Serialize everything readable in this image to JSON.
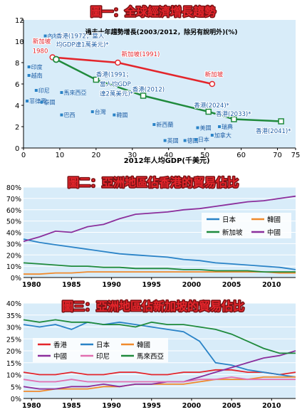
{
  "colors": {
    "panel_bg": "#d8ecf9",
    "title_red": "#e3252b",
    "title_outline": "#7a1214",
    "red": "#e3252b",
    "green": "#1f8a3c",
    "blue": "#2a83c7",
    "text_blue": "#1f5fa6",
    "grid": "#ffffff"
  },
  "chart_data": [
    {
      "type": "line",
      "title": "圖一：全球經濟增長趨勢",
      "subtitle": "過去十年趨勢增長(2003/2012，除另有說明外)(%)",
      "xlabel": "2012年人均GDP(千美元)",
      "ylabel": "",
      "xlim": [
        0,
        75
      ],
      "ylim": [
        0,
        12
      ],
      "x_ticks": [
        0,
        10,
        20,
        30,
        40,
        50,
        60,
        70,
        75
      ],
      "y_ticks": [
        0,
        2,
        4,
        6,
        8,
        10,
        12
      ],
      "grid": false,
      "series": [
        {
          "name": "新加坡",
          "color": "#e3252b",
          "points": [
            {
              "x": 8,
              "y": 8.5
            },
            {
              "x": 26,
              "y": 8.0
            },
            {
              "x": 52,
              "y": 6.0
            }
          ]
        },
        {
          "name": "香港",
          "color": "#1f8a3c",
          "points": [
            {
              "x": 9,
              "y": 8.3
            },
            {
              "x": 20,
              "y": 6.4
            },
            {
              "x": 33,
              "y": 4.9
            },
            {
              "x": 51,
              "y": 3.4
            },
            {
              "x": 58,
              "y": 2.7
            },
            {
              "x": 71,
              "y": 2.5
            }
          ]
        }
      ],
      "point_labels": [
        {
          "text": "新加坡",
          "x": 2.5,
          "y": 9.8,
          "color": "#e3252b"
        },
        {
          "text": "1980",
          "x": 2.5,
          "y": 8.9,
          "color": "#e3252b"
        },
        {
          "text": "香港(1972；當人",
          "x": 9,
          "y": 10.3,
          "color": "#1f5fa6"
        },
        {
          "text": "均GDP達1萬美元)*",
          "x": 9,
          "y": 9.5,
          "color": "#1f5fa6"
        },
        {
          "text": "新加坡(1991)",
          "x": 27,
          "y": 8.6,
          "color": "#e3252b"
        },
        {
          "text": "新加坡",
          "x": 50,
          "y": 6.7,
          "color": "#e3252b"
        },
        {
          "text": "香港(1991；",
          "x": 20,
          "y": 6.7,
          "color": "#1f5fa6"
        },
        {
          "text": "當人均GDP",
          "x": 21,
          "y": 5.8,
          "color": "#1f5fa6"
        },
        {
          "text": "達2萬美元)*",
          "x": 21,
          "y": 4.9,
          "color": "#1f5fa6"
        },
        {
          "text": "香港(2012)",
          "x": 30,
          "y": 5.3,
          "color": "#1f5fa6"
        },
        {
          "text": "香港(2024)*",
          "x": 47,
          "y": 3.8,
          "color": "#1f5fa6"
        },
        {
          "text": "香港(2033)*",
          "x": 53,
          "y": 3.0,
          "color": "#1f5fa6"
        },
        {
          "text": "香港(2041)*",
          "x": 64,
          "y": 1.4,
          "color": "#1f5fa6"
        }
      ],
      "countries": [
        {
          "name": "內地",
          "x": 6,
          "y": 10.5
        },
        {
          "name": "印度",
          "x": 1.5,
          "y": 7.6
        },
        {
          "name": "越南",
          "x": 1.5,
          "y": 6.8
        },
        {
          "name": "印尼",
          "x": 3.5,
          "y": 5.4
        },
        {
          "name": "菲律賓",
          "x": 1,
          "y": 4.4
        },
        {
          "name": "泰國",
          "x": 5,
          "y": 4.3
        },
        {
          "name": "馬來西亞",
          "x": 10.5,
          "y": 5.2
        },
        {
          "name": "巴西",
          "x": 10.5,
          "y": 3.1
        },
        {
          "name": "台灣",
          "x": 19,
          "y": 3.4
        },
        {
          "name": "韓國",
          "x": 25,
          "y": 3.1
        },
        {
          "name": "新西蘭",
          "x": 36,
          "y": 2.2
        },
        {
          "name": "英國",
          "x": 39,
          "y": 0.7
        },
        {
          "name": "德國",
          "x": 44.5,
          "y": 0.7
        },
        {
          "name": "美國",
          "x": 48,
          "y": 1.9
        },
        {
          "name": "瑞典",
          "x": 54,
          "y": 2.0
        },
        {
          "name": "加拿大",
          "x": 52,
          "y": 1.2
        },
        {
          "name": "日本",
          "x": 47.5,
          "y": 0.8
        }
      ]
    },
    {
      "type": "line",
      "title": "圖二：亞洲地區佔香港的貿易佔比",
      "xlabel": "",
      "ylabel": "",
      "xlim": [
        1979,
        2013
      ],
      "ylim": [
        0,
        80
      ],
      "x_ticks": [
        1980,
        1985,
        1990,
        1995,
        2000,
        2005,
        2010
      ],
      "y_ticks": [
        0,
        10,
        20,
        30,
        40,
        50,
        60,
        70,
        80
      ],
      "y_tick_labels": [
        "0%",
        "10%",
        "20%",
        "30%",
        "40%",
        "50%",
        "60%",
        "70%",
        "80%"
      ],
      "grid": true,
      "legend": "right",
      "x": [
        1979,
        1981,
        1983,
        1985,
        1987,
        1989,
        1991,
        1993,
        1995,
        1997,
        1999,
        2001,
        2003,
        2005,
        2007,
        2009,
        2011,
        2013
      ],
      "series": [
        {
          "name": "日本",
          "color": "#2a83c7",
          "values": [
            34,
            31,
            29,
            27,
            25,
            23,
            21,
            20,
            19,
            18,
            16,
            15,
            13,
            12,
            11,
            10,
            9,
            7
          ]
        },
        {
          "name": "韓國",
          "color": "#f08a2c",
          "values": [
            3,
            3,
            4,
            4,
            5,
            5,
            5,
            5,
            5,
            5,
            5,
            5,
            5,
            5,
            5,
            5,
            4,
            4
          ]
        },
        {
          "name": "新加坡",
          "color": "#1f8a3c",
          "values": [
            13,
            12,
            11,
            10,
            10,
            9,
            9,
            8,
            8,
            8,
            7,
            7,
            6,
            6,
            6,
            5,
            5,
            5
          ]
        },
        {
          "name": "中國",
          "color": "#8b2f9c",
          "values": [
            32,
            36,
            41,
            40,
            45,
            47,
            52,
            56,
            57,
            58,
            60,
            61,
            63,
            65,
            67,
            68,
            70,
            72
          ]
        }
      ]
    },
    {
      "type": "line",
      "title": "圖三：亞洲地區佔新加坡的貿易佔比",
      "xlabel": "",
      "ylabel": "",
      "xlim": [
        1979,
        2013
      ],
      "ylim": [
        0,
        40
      ],
      "x_ticks": [
        1980,
        1985,
        1990,
        1995,
        2000,
        2005,
        2010
      ],
      "y_ticks": [
        0,
        5,
        10,
        15,
        20,
        25,
        30,
        35,
        40
      ],
      "y_tick_labels": [
        "0%",
        "5%",
        "10%",
        "15%",
        "20%",
        "25%",
        "30%",
        "35%",
        "40%"
      ],
      "grid": true,
      "legend": "center-left",
      "x": [
        1979,
        1981,
        1983,
        1985,
        1987,
        1989,
        1991,
        1993,
        1995,
        1997,
        1999,
        2001,
        2003,
        2005,
        2007,
        2009,
        2011,
        2013
      ],
      "series": [
        {
          "name": "香港",
          "color": "#e3252b",
          "values": [
            11,
            10,
            10,
            11,
            10,
            10,
            11,
            11,
            10,
            10,
            11,
            11,
            12,
            12,
            11,
            11,
            10,
            11
          ]
        },
        {
          "name": "日本",
          "color": "#2a83c7",
          "values": [
            31,
            30,
            31,
            29,
            32,
            31,
            32,
            31,
            30,
            29,
            28,
            24,
            15,
            14,
            12,
            11,
            10,
            9
          ]
        },
        {
          "name": "韓國",
          "color": "#f08a2c",
          "values": [
            3,
            3,
            4,
            4,
            4,
            5,
            5,
            6,
            6,
            6,
            6,
            7,
            8,
            8,
            8,
            9,
            9,
            9
          ]
        },
        {
          "name": "中國",
          "color": "#8b2f9c",
          "values": [
            5,
            4,
            4,
            5,
            5,
            6,
            5,
            6,
            6,
            7,
            7,
            9,
            11,
            13,
            15,
            17,
            18,
            20
          ]
        },
        {
          "name": "印尼",
          "color": "#e26fb0",
          "values": [
            8,
            7,
            7,
            8,
            7,
            7,
            7,
            7,
            7,
            7,
            7,
            8,
            8,
            9,
            8,
            8,
            8,
            8
          ]
        },
        {
          "name": "馬來西亞",
          "color": "#1f8a3c",
          "values": [
            33,
            32,
            33,
            32,
            32,
            31,
            31,
            30,
            32,
            31,
            31,
            30,
            29,
            27,
            24,
            21,
            19,
            19
          ]
        }
      ]
    }
  ]
}
